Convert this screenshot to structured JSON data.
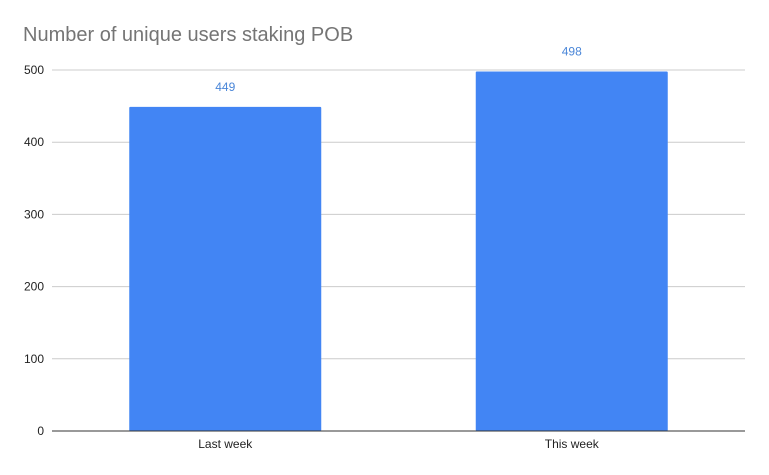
{
  "chart_data": {
    "type": "bar",
    "title": "Number of unique users staking POB",
    "xlabel": "",
    "ylabel": "",
    "categories": [
      "Last week",
      "This week"
    ],
    "values": [
      449,
      498
    ],
    "data_labels": [
      "449",
      "498"
    ],
    "ylim": [
      0,
      500
    ],
    "yticks": [
      0,
      100,
      200,
      300,
      400,
      500
    ],
    "ytick_labels": [
      "0",
      "100",
      "200",
      "300",
      "400",
      "500"
    ],
    "grid": true,
    "legend": "none",
    "colors": {
      "bar": "#4285f4",
      "data_label": "#4a86d8",
      "grid": "#cccccc",
      "axis": "#333333",
      "tick_text": "#222222",
      "title": "#757575"
    }
  }
}
